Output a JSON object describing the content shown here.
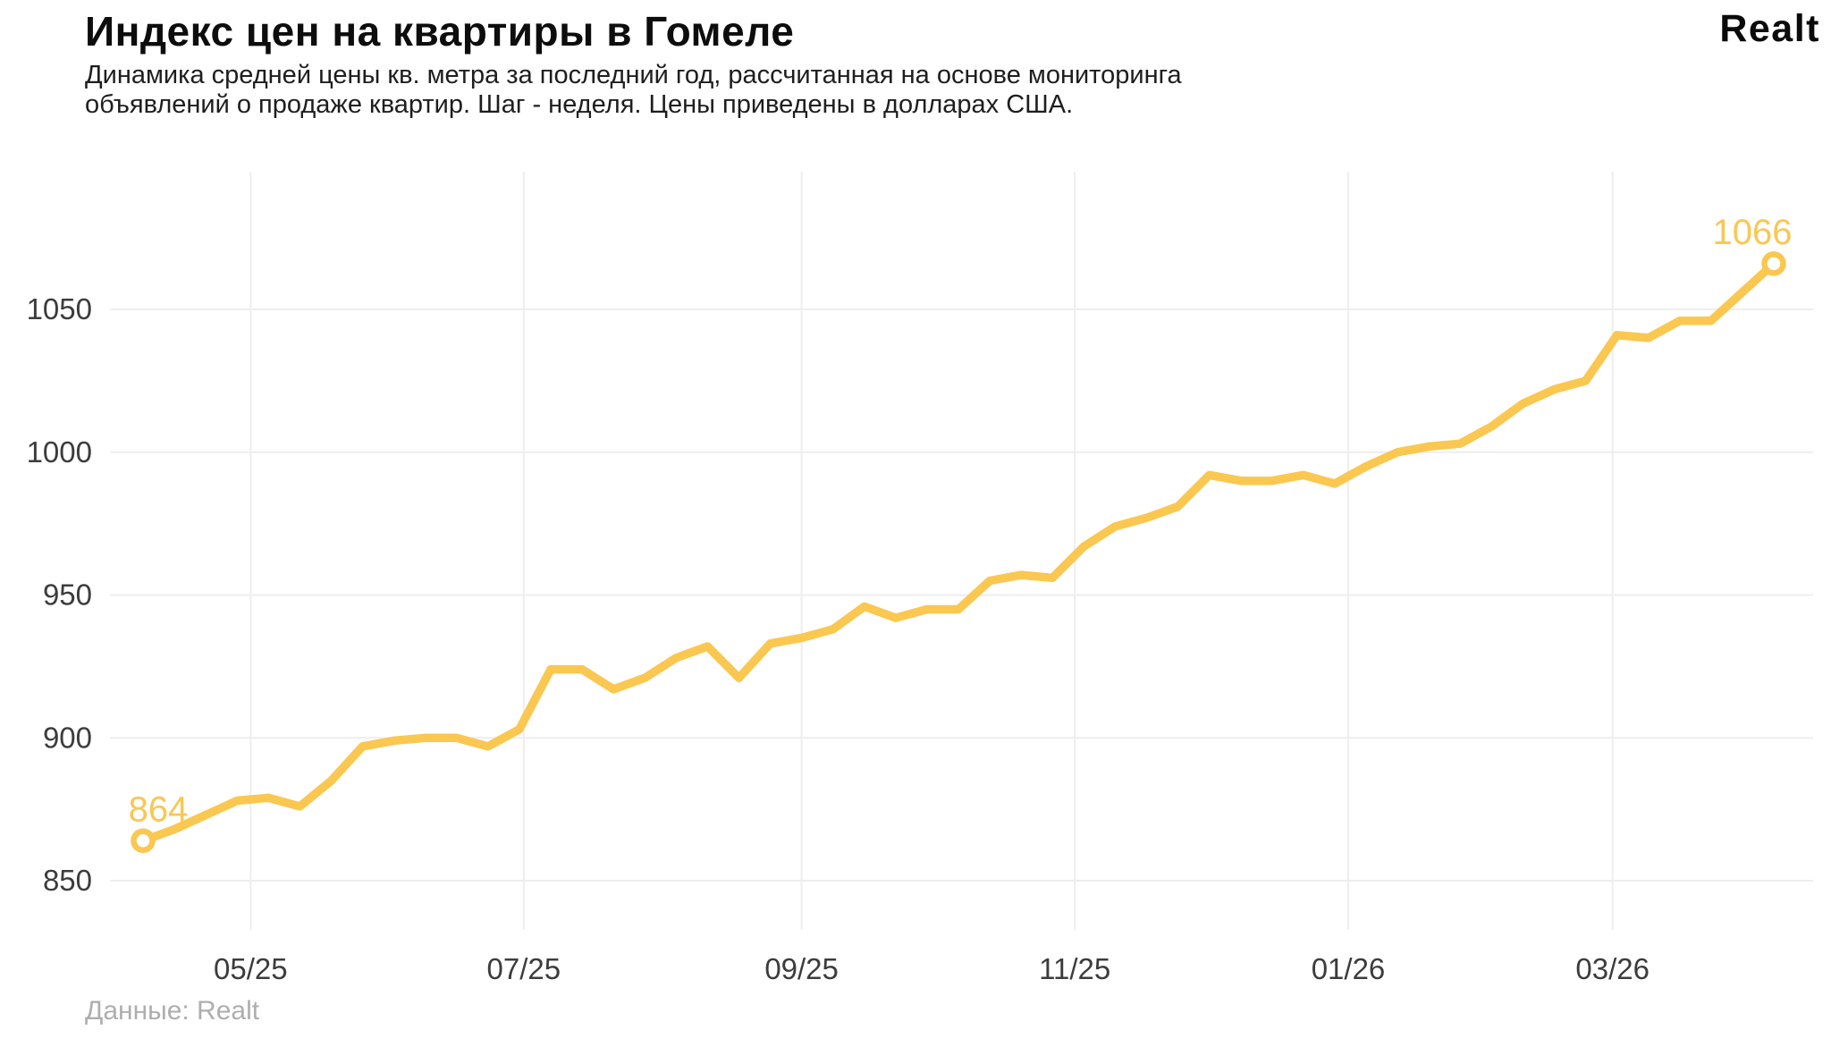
{
  "header": {
    "title": "Индекс цен на квартиры в Гомеле",
    "subtitle_line1": "Динамика средней цены кв. метра за последний год, рассчитанная на основе мониторинга",
    "subtitle_line2": "объявлений о продаже квартир. Шаг - неделя. Цены приведены в долларах США.",
    "logo_text": "Realt"
  },
  "footer": {
    "source": "Данные: Realt"
  },
  "chart_data": {
    "type": "line",
    "title": "Индекс цен на квартиры в Гомеле",
    "unit": "USD",
    "step": "week",
    "x_ticks": [
      {
        "label": "05/25",
        "week": 3.43
      },
      {
        "label": "07/25",
        "week": 12.14
      },
      {
        "label": "09/25",
        "week": 21.0
      },
      {
        "label": "11/25",
        "week": 29.71
      },
      {
        "label": "01/26",
        "week": 38.43
      },
      {
        "label": "03/26",
        "week": 46.86
      }
    ],
    "y_ticks": [
      850,
      900,
      950,
      1000,
      1050
    ],
    "ylim": [
      838,
      1078
    ],
    "grid": true,
    "legend": "none",
    "values": [
      864,
      868,
      873,
      878,
      879,
      876,
      885,
      897,
      899,
      900,
      900,
      897,
      903,
      924,
      924,
      917,
      921,
      928,
      932,
      921,
      933,
      935,
      938,
      946,
      942,
      945,
      945,
      955,
      957,
      956,
      967,
      974,
      977,
      981,
      992,
      990,
      990,
      992,
      989,
      995,
      1000,
      1002,
      1003,
      1009,
      1017,
      1022,
      1025,
      1041,
      1040,
      1046,
      1046,
      1056,
      1066
    ],
    "first_point_label": "864",
    "last_point_label": "1066",
    "colors": {
      "line": "#FAC750",
      "grid": "#EEEEEE",
      "tick_text": "#3C3C3C",
      "label_text": "#FAC750",
      "background": "#FFFFFF"
    }
  }
}
